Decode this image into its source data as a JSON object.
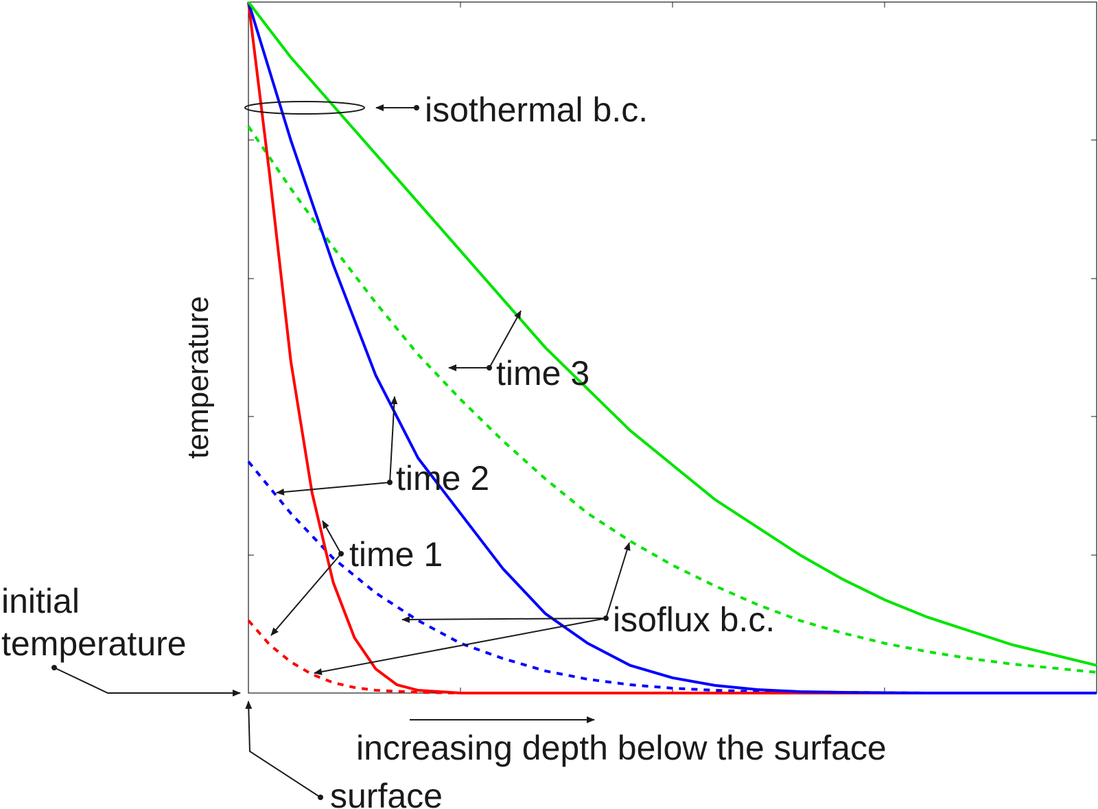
{
  "chart_data": {
    "type": "line",
    "xlabel": "increasing depth below the surface",
    "ylabel": "temperature",
    "xlim": [
      0,
      1
    ],
    "ylim": [
      0,
      1
    ],
    "grid": false,
    "series": [
      {
        "name": "time 1",
        "bc": "isothermal",
        "color": "#ff0000",
        "dash": "solid",
        "x": [
          0,
          0.025,
          0.05,
          0.075,
          0.1,
          0.125,
          0.15,
          0.175,
          0.2,
          0.25,
          0.3,
          0.4,
          1.0
        ],
        "y": [
          1.0,
          0.75,
          0.48,
          0.29,
          0.16,
          0.08,
          0.035,
          0.012,
          0.004,
          0.0,
          0.0,
          0.0,
          0.0
        ]
      },
      {
        "name": "time 2",
        "bc": "isothermal",
        "color": "#0000ff",
        "dash": "solid",
        "x": [
          0,
          0.05,
          0.1,
          0.15,
          0.2,
          0.25,
          0.3,
          0.35,
          0.4,
          0.45,
          0.5,
          0.55,
          0.6,
          0.65,
          0.7,
          0.8,
          0.9,
          1.0
        ],
        "y": [
          1.0,
          0.8,
          0.62,
          0.46,
          0.34,
          0.26,
          0.18,
          0.115,
          0.072,
          0.04,
          0.022,
          0.011,
          0.005,
          0.002,
          0.001,
          0.0,
          0.0,
          0.0
        ]
      },
      {
        "name": "time 3",
        "bc": "isothermal",
        "color": "#00e400",
        "dash": "solid",
        "x": [
          0,
          0.05,
          0.1,
          0.15,
          0.2,
          0.25,
          0.3,
          0.35,
          0.4,
          0.45,
          0.5,
          0.55,
          0.6,
          0.65,
          0.7,
          0.75,
          0.8,
          0.85,
          0.9,
          0.95,
          1.0
        ],
        "y": [
          1.0,
          0.92,
          0.85,
          0.78,
          0.71,
          0.64,
          0.57,
          0.5,
          0.44,
          0.38,
          0.33,
          0.28,
          0.24,
          0.2,
          0.165,
          0.135,
          0.11,
          0.09,
          0.07,
          0.055,
          0.04
        ]
      },
      {
        "name": "time 1",
        "bc": "isoflux",
        "color": "#ff0000",
        "dash": "dashed",
        "x": [
          0,
          0.025,
          0.05,
          0.075,
          0.1,
          0.125,
          0.15,
          0.2,
          0.25,
          0.3,
          0.4,
          0.6,
          1.0
        ],
        "y": [
          0.105,
          0.07,
          0.045,
          0.027,
          0.015,
          0.008,
          0.004,
          0.001,
          0.0,
          0.0,
          0.0,
          0.0,
          0.0
        ]
      },
      {
        "name": "time 2",
        "bc": "isoflux",
        "color": "#0000ff",
        "dash": "dashed",
        "x": [
          0,
          0.05,
          0.1,
          0.15,
          0.2,
          0.25,
          0.3,
          0.35,
          0.4,
          0.45,
          0.5,
          0.55,
          0.6,
          0.7,
          0.8,
          0.9,
          1.0
        ],
        "y": [
          0.335,
          0.26,
          0.195,
          0.145,
          0.105,
          0.072,
          0.05,
          0.032,
          0.02,
          0.012,
          0.007,
          0.004,
          0.002,
          0.001,
          0.0,
          0.0,
          0.0
        ]
      },
      {
        "name": "time 3",
        "bc": "isoflux",
        "color": "#00e400",
        "dash": "dashed",
        "x": [
          0,
          0.05,
          0.1,
          0.15,
          0.2,
          0.25,
          0.3,
          0.35,
          0.4,
          0.45,
          0.5,
          0.55,
          0.6,
          0.65,
          0.7,
          0.75,
          0.8,
          0.85,
          0.9,
          0.95,
          1.0
        ],
        "y": [
          0.82,
          0.73,
          0.645,
          0.565,
          0.49,
          0.425,
          0.365,
          0.31,
          0.26,
          0.22,
          0.185,
          0.155,
          0.128,
          0.105,
          0.087,
          0.072,
          0.06,
          0.05,
          0.042,
          0.036,
          0.03
        ]
      }
    ],
    "annotations": {
      "isothermal": "isothermal b.c.",
      "isoflux": "isoflux b.c.",
      "time1": "time 1",
      "time2": "time 2",
      "time3": "time 3",
      "initial_line1": "initial",
      "initial_line2": "temperature",
      "surface": "surface"
    }
  }
}
